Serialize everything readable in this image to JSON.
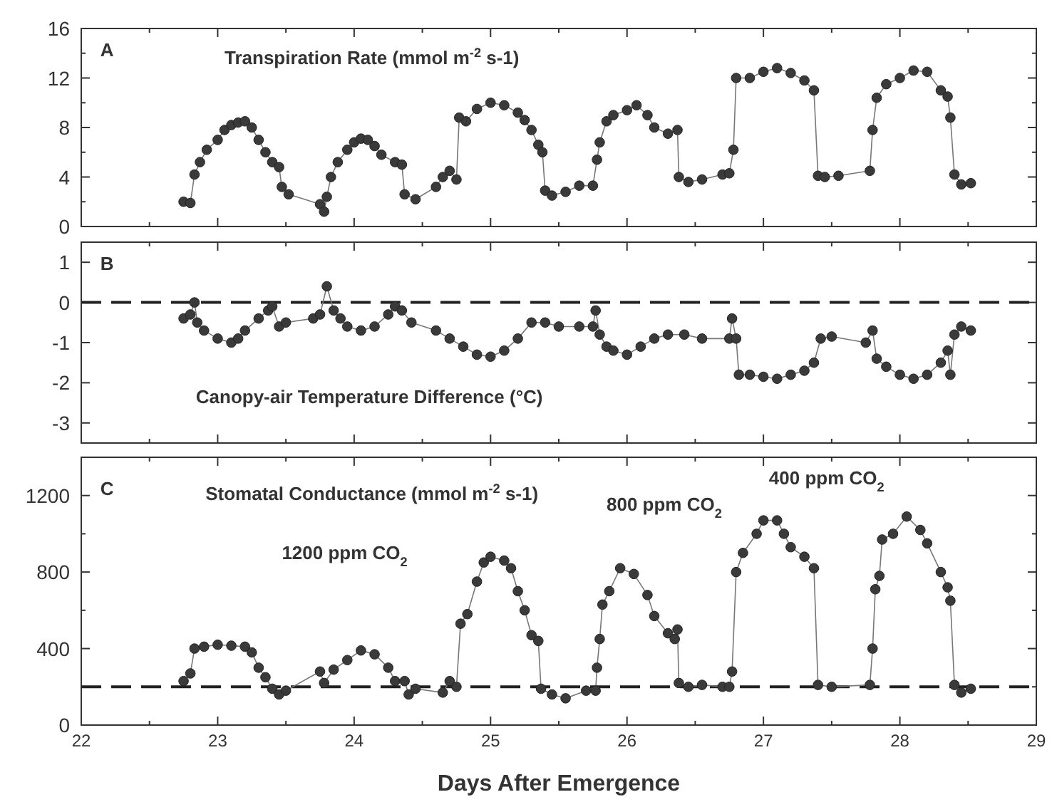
{
  "chart_data": [
    {
      "type": "line",
      "title": "Transpiration Rate (mmol m$^{-2}$ s-1)",
      "annotations": [
        "A"
      ],
      "marker": "circle",
      "line_style": "solid",
      "grid": false,
      "tick_labels": "y",
      "xlim": [
        22,
        29
      ],
      "xticks": [
        22,
        {
          "value": 22.5,
          "label": null
        },
        23,
        {
          "value": 23.5,
          "label": null
        },
        24,
        {
          "value": 24.5,
          "label": null
        },
        25,
        {
          "value": 25.5,
          "label": null
        },
        26,
        {
          "value": 26.5,
          "label": null
        },
        27,
        {
          "value": 27.5,
          "label": null
        },
        28,
        {
          "value": 28.5,
          "label": null
        },
        29
      ],
      "ylim": [
        0,
        16
      ],
      "yticks": [
        0,
        {
          "value": 2,
          "label": null
        },
        4,
        {
          "value": 6,
          "label": null
        },
        8,
        {
          "value": 10,
          "label": null
        },
        12,
        {
          "value": 14,
          "label": null
        },
        16
      ],
      "series": [
        {
          "color": "#3a3a3a",
          "x": [
            22.75,
            22.8,
            22.83,
            22.87,
            22.92,
            23.0,
            23.05,
            23.1,
            23.15,
            23.2,
            23.25,
            23.3,
            23.35,
            23.4,
            23.45,
            23.47,
            23.52,
            23.75,
            23.78,
            23.8,
            23.83,
            23.88,
            23.95,
            24.0,
            24.05,
            24.1,
            24.15,
            24.2,
            24.3,
            24.35,
            24.37,
            24.45,
            24.6,
            24.65,
            24.7,
            24.75,
            24.77,
            24.82,
            24.9,
            25.0,
            25.1,
            25.2,
            25.25,
            25.3,
            25.35,
            25.38,
            25.4,
            25.45,
            25.55,
            25.65,
            25.75,
            25.78,
            25.8,
            25.85,
            25.9,
            26.0,
            26.07,
            26.15,
            26.2,
            26.3,
            26.37,
            26.38,
            26.45,
            26.55,
            26.7,
            26.75,
            26.78,
            26.8,
            26.9,
            27.0,
            27.1,
            27.2,
            27.3,
            27.37,
            27.4,
            27.45,
            27.55,
            27.78,
            27.8,
            27.83,
            27.9,
            28.0,
            28.1,
            28.2,
            28.3,
            28.35,
            28.37,
            28.4,
            28.45,
            28.52
          ],
          "values": [
            2.0,
            1.9,
            4.2,
            5.2,
            6.2,
            7.0,
            7.8,
            8.2,
            8.4,
            8.5,
            8.0,
            7.0,
            6.0,
            5.2,
            4.8,
            3.2,
            2.6,
            1.8,
            1.2,
            2.4,
            4.0,
            5.2,
            6.2,
            6.8,
            7.1,
            7.0,
            6.5,
            5.8,
            5.2,
            5.0,
            2.6,
            2.2,
            3.2,
            4.0,
            4.5,
            3.8,
            8.8,
            8.5,
            9.5,
            10.0,
            9.8,
            9.2,
            8.6,
            7.8,
            6.6,
            6.0,
            2.9,
            2.5,
            2.8,
            3.3,
            3.3,
            5.4,
            6.8,
            8.5,
            9.0,
            9.4,
            9.8,
            9.0,
            8.0,
            7.5,
            7.8,
            4.0,
            3.6,
            3.8,
            4.2,
            4.3,
            6.2,
            12.0,
            12.0,
            12.5,
            12.8,
            12.4,
            11.8,
            11.0,
            4.1,
            4.0,
            4.1,
            4.5,
            7.8,
            10.4,
            11.5,
            12.0,
            12.6,
            12.5,
            11.0,
            10.5,
            8.8,
            4.2,
            3.4,
            3.5
          ]
        }
      ]
    },
    {
      "type": "line",
      "title": "Canopy-air Temperature Difference (°C)",
      "annotations": [
        "B"
      ],
      "marker": "circle",
      "line_style": "solid",
      "grid": false,
      "tick_labels": "y",
      "xlim": [
        22,
        29
      ],
      "xticks": [
        22,
        {
          "value": 22.5,
          "label": null
        },
        23,
        {
          "value": 23.5,
          "label": null
        },
        24,
        {
          "value": 24.5,
          "label": null
        },
        25,
        {
          "value": 25.5,
          "label": null
        },
        26,
        {
          "value": 26.5,
          "label": null
        },
        27,
        {
          "value": 27.5,
          "label": null
        },
        28,
        {
          "value": 28.5,
          "label": null
        },
        29
      ],
      "ylim": [
        -3.5,
        1.5
      ],
      "yticks": [
        -3,
        -2,
        -1,
        0,
        1
      ],
      "ref_lines": [
        {
          "axis": "y",
          "value": 0,
          "color": "#222222",
          "line_style": "dashed"
        }
      ],
      "series": [
        {
          "color": "#3a3a3a",
          "x": [
            22.75,
            22.8,
            22.83,
            22.85,
            22.9,
            23.0,
            23.1,
            23.15,
            23.2,
            23.3,
            23.37,
            23.4,
            23.45,
            23.5,
            23.7,
            23.75,
            23.8,
            23.85,
            23.9,
            23.95,
            24.05,
            24.15,
            24.25,
            24.3,
            24.35,
            24.42,
            24.6,
            24.7,
            24.8,
            24.9,
            25.0,
            25.1,
            25.2,
            25.3,
            25.4,
            25.5,
            25.65,
            25.75,
            25.77,
            25.8,
            25.85,
            25.9,
            26.0,
            26.1,
            26.2,
            26.3,
            26.42,
            26.55,
            26.75,
            26.77,
            26.8,
            26.82,
            26.9,
            27.0,
            27.1,
            27.2,
            27.3,
            27.37,
            27.42,
            27.5,
            27.75,
            27.8,
            27.83,
            27.9,
            28.0,
            28.1,
            28.2,
            28.3,
            28.35,
            28.37,
            28.4,
            28.45,
            28.52
          ],
          "values": [
            -0.4,
            -0.3,
            0.0,
            -0.5,
            -0.7,
            -0.9,
            -1.0,
            -0.9,
            -0.7,
            -0.4,
            -0.2,
            -0.1,
            -0.6,
            -0.5,
            -0.4,
            -0.3,
            0.4,
            -0.2,
            -0.4,
            -0.6,
            -0.7,
            -0.6,
            -0.3,
            -0.1,
            -0.2,
            -0.5,
            -0.7,
            -0.9,
            -1.1,
            -1.3,
            -1.35,
            -1.2,
            -0.9,
            -0.5,
            -0.5,
            -0.6,
            -0.6,
            -0.6,
            -0.2,
            -0.8,
            -1.1,
            -1.2,
            -1.3,
            -1.1,
            -0.9,
            -0.8,
            -0.8,
            -0.9,
            -0.9,
            -0.4,
            -0.9,
            -1.8,
            -1.8,
            -1.85,
            -1.9,
            -1.8,
            -1.7,
            -1.5,
            -0.9,
            -0.85,
            -1.0,
            -0.7,
            -1.4,
            -1.6,
            -1.8,
            -1.9,
            -1.8,
            -1.5,
            -1.2,
            -1.8,
            -0.8,
            -0.6,
            -0.7
          ]
        }
      ]
    },
    {
      "type": "line",
      "title": "Stomatal Conductance (mmol m$^{-2}$ s-1)",
      "xlabel": "Days After Emergence",
      "marker": "circle",
      "line_style": "solid",
      "grid": false,
      "annotations": [
        "C",
        "1200 ppm CO$_{2}$",
        "800 ppm CO$_{2}$",
        "400 ppm CO$_{2}$"
      ],
      "xlim": [
        22,
        29
      ],
      "xticks": [
        22,
        {
          "value": 22.5,
          "label": null
        },
        23,
        {
          "value": 23.5,
          "label": null
        },
        24,
        {
          "value": 24.5,
          "label": null
        },
        25,
        {
          "value": 25.5,
          "label": null
        },
        26,
        {
          "value": 26.5,
          "label": null
        },
        27,
        {
          "value": 27.5,
          "label": null
        },
        28,
        {
          "value": 28.5,
          "label": null
        },
        29
      ],
      "ylim": [
        0,
        1400
      ],
      "yticks": [
        0,
        {
          "value": 200,
          "label": null
        },
        400,
        {
          "value": 600,
          "label": null
        },
        800,
        {
          "value": 1000,
          "label": null
        },
        1200
      ],
      "ref_lines": [
        {
          "axis": "y",
          "value": 200,
          "color": "#222222",
          "line_style": "dashed"
        }
      ],
      "series": [
        {
          "color": "#3a3a3a",
          "x": [
            22.75,
            22.8,
            22.83,
            22.9,
            23.0,
            23.1,
            23.2,
            23.25,
            23.3,
            23.35,
            23.4,
            23.45,
            23.5,
            23.75,
            23.78,
            23.85,
            23.95,
            24.05,
            24.15,
            24.25,
            24.3,
            24.37,
            24.4,
            24.45,
            24.65,
            24.7,
            24.75,
            24.78,
            24.83,
            24.9,
            24.95,
            25.0,
            25.1,
            25.15,
            25.2,
            25.25,
            25.3,
            25.35,
            25.37,
            25.45,
            25.55,
            25.7,
            25.77,
            25.78,
            25.8,
            25.82,
            25.87,
            25.95,
            26.05,
            26.15,
            26.2,
            26.3,
            26.35,
            26.37,
            26.38,
            26.45,
            26.55,
            26.7,
            26.75,
            26.77,
            26.8,
            26.85,
            26.95,
            27.0,
            27.1,
            27.15,
            27.2,
            27.3,
            27.37,
            27.4,
            27.5,
            27.78,
            27.8,
            27.82,
            27.85,
            27.87,
            27.95,
            28.05,
            28.15,
            28.2,
            28.3,
            28.35,
            28.37,
            28.4,
            28.45,
            28.52
          ],
          "values": [
            230,
            270,
            400,
            410,
            420,
            415,
            410,
            380,
            300,
            250,
            190,
            160,
            180,
            280,
            220,
            290,
            340,
            390,
            370,
            300,
            230,
            230,
            160,
            190,
            170,
            230,
            200,
            530,
            580,
            750,
            850,
            880,
            860,
            820,
            700,
            600,
            470,
            440,
            190,
            160,
            140,
            180,
            180,
            300,
            450,
            630,
            700,
            820,
            790,
            680,
            570,
            480,
            450,
            500,
            220,
            200,
            210,
            200,
            200,
            280,
            800,
            900,
            1000,
            1070,
            1070,
            1000,
            930,
            880,
            820,
            210,
            200,
            210,
            400,
            710,
            780,
            970,
            1000,
            1090,
            1020,
            950,
            800,
            720,
            650,
            210,
            170,
            190
          ]
        }
      ]
    }
  ]
}
